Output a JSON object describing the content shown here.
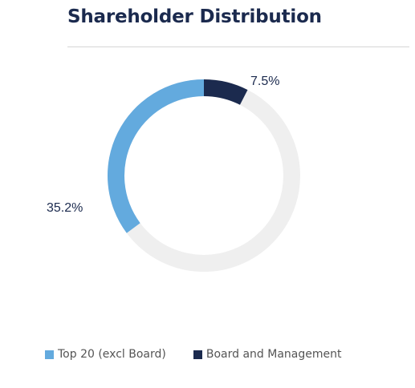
{
  "title": "Shareholder Distribution",
  "chart_data": {
    "type": "pie",
    "style": "donut",
    "series": [
      {
        "name": "Top 20 (excl Board)",
        "value": 35.2,
        "label": "35.2%",
        "color": "#63aade"
      },
      {
        "name": "Board and Management",
        "value": 7.5,
        "label": "7.5%",
        "color": "#1b2a4e"
      }
    ],
    "remainder_color": "#efefef",
    "legend_position": "bottom-left"
  },
  "colors": {
    "title": "#1b2a4e",
    "label": "#1b2a4e"
  }
}
